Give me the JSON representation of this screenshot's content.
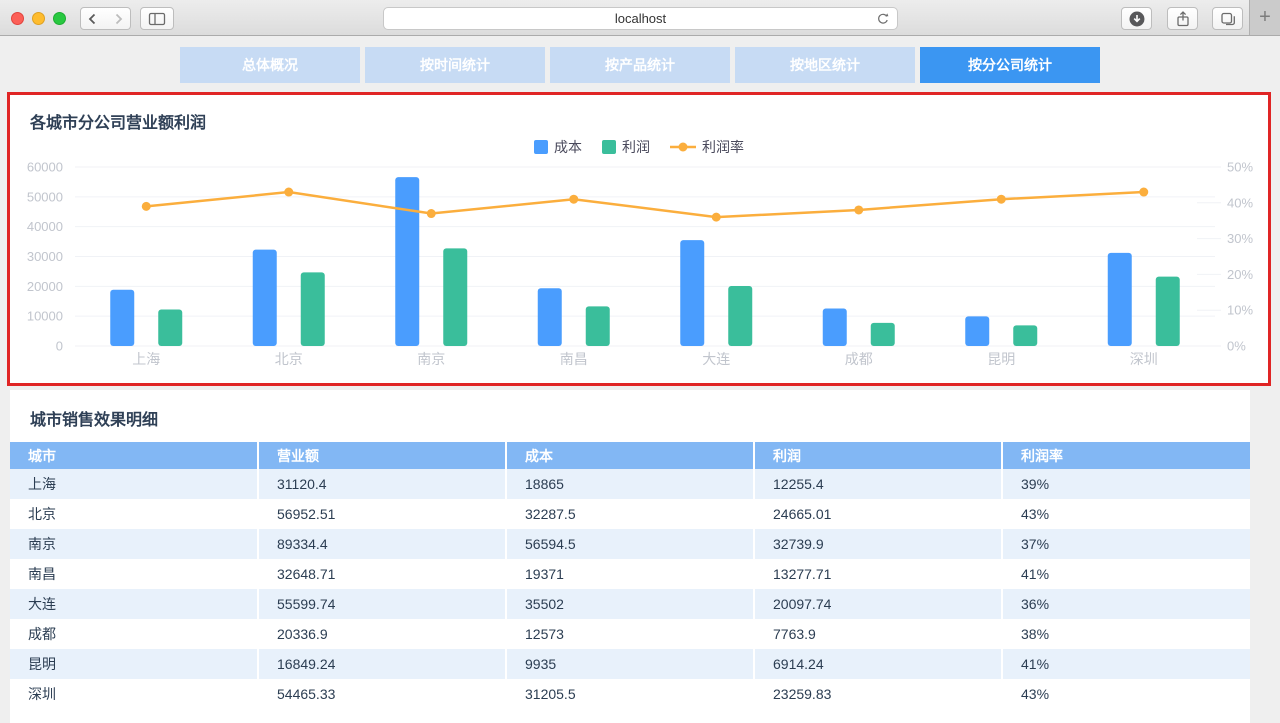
{
  "browser": {
    "url": "localhost"
  },
  "nav_tabs": [
    {
      "label": "总体概况",
      "active": false
    },
    {
      "label": "按时间统计",
      "active": false
    },
    {
      "label": "按产品统计",
      "active": false
    },
    {
      "label": "按地区统计",
      "active": false
    },
    {
      "label": "按分公司统计",
      "active": true
    }
  ],
  "chart_section": {
    "title": "各城市分公司营业额利润"
  },
  "chart_data": {
    "type": "bar",
    "title": "各城市分公司营业额利润",
    "categories": [
      "上海",
      "北京",
      "南京",
      "南昌",
      "大连",
      "成都",
      "昆明",
      "深圳"
    ],
    "series": [
      {
        "name": "成本",
        "type": "bar",
        "color": "#4a9dfe",
        "axis": "left",
        "values": [
          18865,
          32287.5,
          56594.5,
          19371,
          35502,
          12573,
          9935,
          31205.5
        ]
      },
      {
        "name": "利润",
        "type": "bar",
        "color": "#3abe9b",
        "axis": "left",
        "values": [
          12255.4,
          24665.01,
          32739.9,
          13277.71,
          20097.74,
          7763.9,
          6914.24,
          23259.83
        ]
      },
      {
        "name": "利润率",
        "type": "line",
        "color": "#fbae3d",
        "axis": "right",
        "values": [
          39,
          43,
          37,
          41,
          36,
          38,
          41,
          43
        ]
      }
    ],
    "left_axis": {
      "min": 0,
      "max": 60000,
      "step": 10000,
      "ticks": [
        "0",
        "10000",
        "20000",
        "30000",
        "40000",
        "50000",
        "60000"
      ]
    },
    "right_axis": {
      "min": 0,
      "max": 50,
      "step": 10,
      "ticks": [
        "0%",
        "10%",
        "20%",
        "30%",
        "40%",
        "50%"
      ]
    },
    "legend_position": "top-center",
    "grid": true
  },
  "table_section": {
    "title": "城市销售效果明细",
    "columns": [
      "城市",
      "营业额",
      "成本",
      "利润",
      "利润率"
    ],
    "rows": [
      [
        "上海",
        "31120.4",
        "18865",
        "12255.4",
        "39%"
      ],
      [
        "北京",
        "56952.51",
        "32287.5",
        "24665.01",
        "43%"
      ],
      [
        "南京",
        "89334.4",
        "56594.5",
        "32739.9",
        "37%"
      ],
      [
        "南昌",
        "32648.71",
        "19371",
        "13277.71",
        "41%"
      ],
      [
        "大连",
        "55599.74",
        "35502",
        "20097.74",
        "36%"
      ],
      [
        "成都",
        "20336.9",
        "12573",
        "7763.9",
        "38%"
      ],
      [
        "昆明",
        "16849.24",
        "9935",
        "6914.24",
        "41%"
      ],
      [
        "深圳",
        "54465.33",
        "31205.5",
        "23259.83",
        "43%"
      ]
    ]
  },
  "colors": {
    "tab_active": "#3b96f2",
    "tab_inactive": "#c7dbf4",
    "table_header": "#82b7f4",
    "row_stripe": "#e8f1fb",
    "bar_cost": "#4a9dfe",
    "bar_profit": "#3abe9b",
    "line_rate": "#fbae3d",
    "annotation_red": "#e02525",
    "axis_text": "#c1c5cd",
    "title_text": "#2f4056"
  }
}
